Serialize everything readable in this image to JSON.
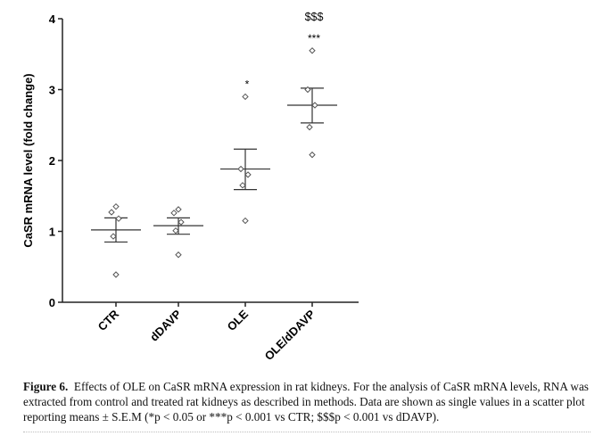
{
  "chart_data": {
    "type": "scatter",
    "ylabel": "CaSR mRNA level (fold change)",
    "xlabel": "",
    "ylim": [
      0,
      4
    ],
    "yticks": [
      0,
      1,
      2,
      3,
      4
    ],
    "grid": false,
    "categories": [
      "CTR",
      "dDAVP",
      "OLE",
      "OLE/dDAVP"
    ],
    "groups": [
      {
        "label": "CTR",
        "points": [
          1.35,
          1.27,
          1.18,
          0.93,
          0.39
        ],
        "mean": 1.02,
        "sem_upper": 1.19,
        "sem_lower": 0.85,
        "annotations": []
      },
      {
        "label": "dDAVP",
        "points": [
          1.31,
          1.26,
          1.13,
          1.01,
          0.67
        ],
        "mean": 1.08,
        "sem_upper": 1.19,
        "sem_lower": 0.96,
        "annotations": []
      },
      {
        "label": "OLE",
        "points": [
          2.9,
          1.88,
          1.8,
          1.65,
          1.15
        ],
        "mean": 1.88,
        "sem_upper": 2.16,
        "sem_lower": 1.59,
        "annotations": [
          "*"
        ]
      },
      {
        "label": "OLE/dDAVP",
        "points": [
          3.55,
          3.0,
          2.78,
          2.47,
          2.08
        ],
        "mean": 2.78,
        "sem_upper": 3.02,
        "sem_lower": 2.53,
        "annotations": [
          "***",
          "$$$"
        ]
      }
    ]
  },
  "caption": {
    "label": "Figure 6.",
    "text": "Effects of OLE on CaSR mRNA expression in rat kidneys. For the analysis of CaSR mRNA levels, RNA was extracted from control and treated rat kidneys as described in methods. Data are shown as single values in a scatter plot reporting means ± S.E.M (*p < 0.05 or ***p < 0.001 vs CTR; $$$p < 0.001 vs dDAVP)."
  }
}
